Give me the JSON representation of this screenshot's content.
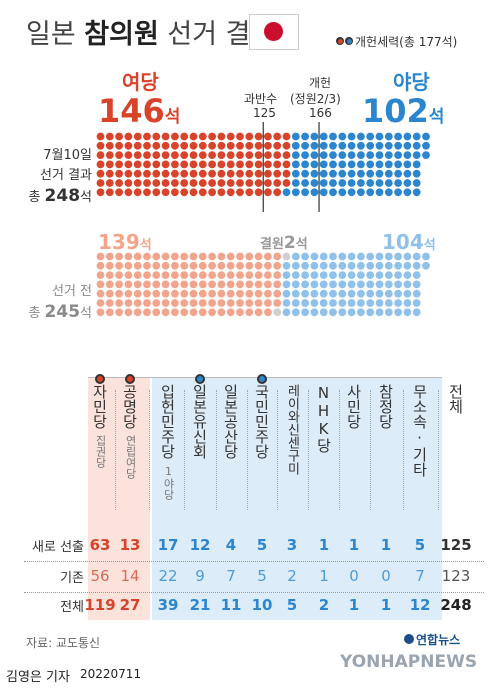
{
  "title": {
    "plain_pre": "일본 ",
    "bold": "참의원",
    "plain_post": " 선거 결과"
  },
  "legend_text": "개헌세력(총 177석)",
  "colors": {
    "ruling": "#d8432a",
    "ruling_light": "#f2a58c",
    "opposition": "#2b86cf",
    "opposition_light": "#8fc1ea",
    "vacant": "#cfcfcf",
    "gray_text": "#8a8a8a",
    "col_ruling_bg": "#fbe3dc",
    "col_opp_bg": "#dcecf8",
    "dark": "#333333"
  },
  "top": {
    "ruling_label": "여당",
    "ruling_num": "146",
    "ruling_unit": "석",
    "opp_label": "야당",
    "opp_num": "102",
    "opp_unit": "석",
    "majority_label": "과반수",
    "majority_value": "125",
    "amend_label_1": "개헌",
    "amend_label_2": "(정원2/3)",
    "amend_value": "166",
    "side_1": "7월10일",
    "side_2": "선거 결과",
    "side_3_pre": "총 ",
    "side_3_num": "248",
    "side_3_unit": "석"
  },
  "before": {
    "ruling_num": "139",
    "ruling_unit": "석",
    "vacant_label": "결원",
    "vacant_num": "2",
    "vacant_unit": "석",
    "opp_num": "104",
    "opp_unit": "석",
    "side_1": "선거 전",
    "side_2_pre": "총 ",
    "side_2_num": "245",
    "side_2_unit": "석"
  },
  "chart_data": {
    "type": "table",
    "after_election": {
      "total": 248,
      "ruling": 146,
      "opposition": 102,
      "amendment_forces": 177,
      "majority": 125,
      "two_thirds": 166
    },
    "before_election": {
      "total": 245,
      "ruling": 139,
      "vacant": 2,
      "opposition": 104
    },
    "parties": [
      {
        "name": "자민당",
        "sub": "집권당",
        "group": "ruling",
        "amend": true,
        "new": "63",
        "existing": "56",
        "total": "119"
      },
      {
        "name": "공명당",
        "sub": "연립여당",
        "group": "ruling",
        "amend": true,
        "new": "13",
        "existing": "14",
        "total": "27"
      },
      {
        "name": "입헌민주당",
        "sub": "1야당",
        "group": "opp",
        "amend": false,
        "new": "17",
        "existing": "22",
        "total": "39"
      },
      {
        "name": "일본유신회",
        "sub": "",
        "group": "opp",
        "amend": true,
        "new": "12",
        "existing": "9",
        "total": "21"
      },
      {
        "name": "일본공산당",
        "sub": "",
        "group": "opp",
        "amend": false,
        "new": "4",
        "existing": "7",
        "total": "11"
      },
      {
        "name": "국민민주당",
        "sub": "",
        "group": "opp",
        "amend": true,
        "new": "5",
        "existing": "5",
        "total": "10"
      },
      {
        "name": "레이와신센구미",
        "sub": "",
        "group": "opp",
        "amend": false,
        "new": "3",
        "existing": "2",
        "total": "5"
      },
      {
        "name": "NHK당",
        "sub": "",
        "group": "opp",
        "amend": false,
        "new": "1",
        "existing": "1",
        "total": "2"
      },
      {
        "name": "사민당",
        "sub": "",
        "group": "opp",
        "amend": false,
        "new": "1",
        "existing": "0",
        "total": "1"
      },
      {
        "name": "참정당",
        "sub": "",
        "group": "opp",
        "amend": false,
        "new": "1",
        "existing": "0",
        "total": "1"
      },
      {
        "name": "무소속·기타",
        "sub": "",
        "group": "opp",
        "amend": false,
        "new": "5",
        "existing": "7",
        "total": "12"
      },
      {
        "name": "전체",
        "sub": "",
        "group": "total",
        "amend": false,
        "new": "125",
        "existing": "123",
        "total": "248"
      }
    ],
    "row_labels": [
      "새로 선출",
      "기존",
      "전체"
    ]
  },
  "source": "자료: 교도통신",
  "logo": "연합뉴스",
  "watermark": "YONHAPNEWS",
  "byline": "김영은 기자",
  "date": "20220711"
}
